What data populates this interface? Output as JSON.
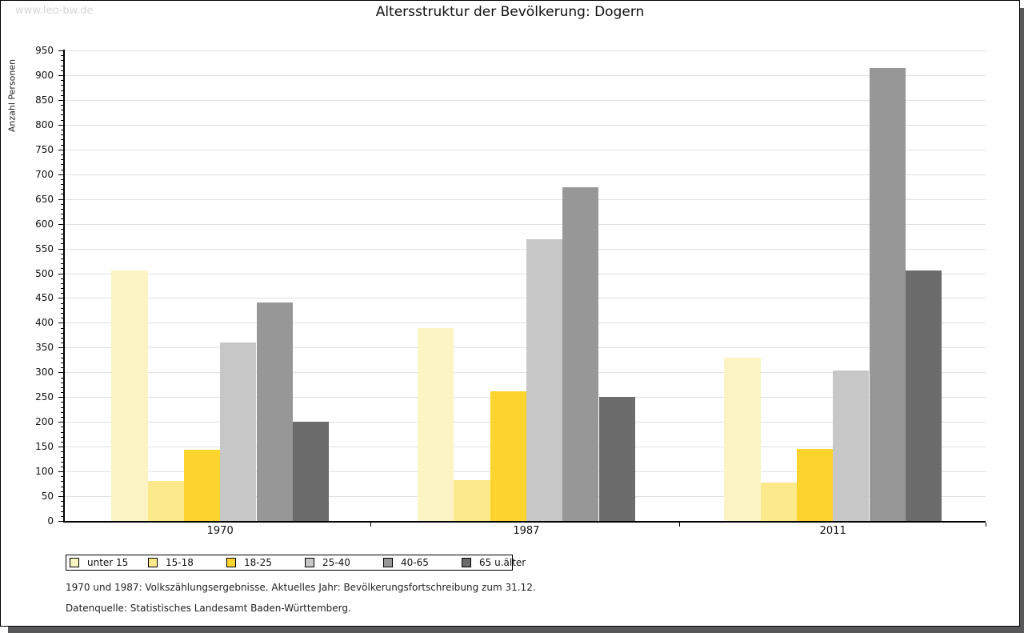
{
  "watermark": "www.leo-bw.de",
  "title": "Altersstruktur der Bevölkerung: Dogern",
  "chart_data": {
    "type": "bar",
    "title": "Altersstruktur der Bevölkerung: Dogern",
    "xlabel": "",
    "ylabel": "Anzahl Personen",
    "ylim": [
      0,
      950
    ],
    "y_tick_step": 50,
    "y_minor_tick_step": 10,
    "grid": true,
    "legend_position": "bottom",
    "categories": [
      "1970",
      "1987",
      "2011"
    ],
    "series": [
      {
        "name": "unter 15",
        "color": "#fcf4c5",
        "values": [
          505,
          389,
          330
        ]
      },
      {
        "name": "15-18",
        "color": "#fbe98c",
        "values": [
          80,
          82,
          77
        ]
      },
      {
        "name": "18-25",
        "color": "#fcd42d",
        "values": [
          143,
          262,
          145
        ]
      },
      {
        "name": "25-40",
        "color": "#c7c7c7",
        "values": [
          360,
          568,
          303
        ]
      },
      {
        "name": "40-65",
        "color": "#979797",
        "values": [
          441,
          673,
          914
        ]
      },
      {
        "name": "65 u.älter",
        "color": "#6c6c6c",
        "values": [
          201,
          250,
          506
        ]
      }
    ]
  },
  "footer": {
    "line1": "1970 und 1987: Volkszählungsergebnisse. Aktuelles Jahr: Bevölkerungsfortschreibung zum 31.12.",
    "line2": "Datenquelle: Statistisches Landesamt Baden-Württemberg."
  },
  "colors": {
    "grid": "#e0e0e0",
    "axis": "#000000",
    "watermark": "#d6d6d6",
    "shadow": "#58585a"
  }
}
